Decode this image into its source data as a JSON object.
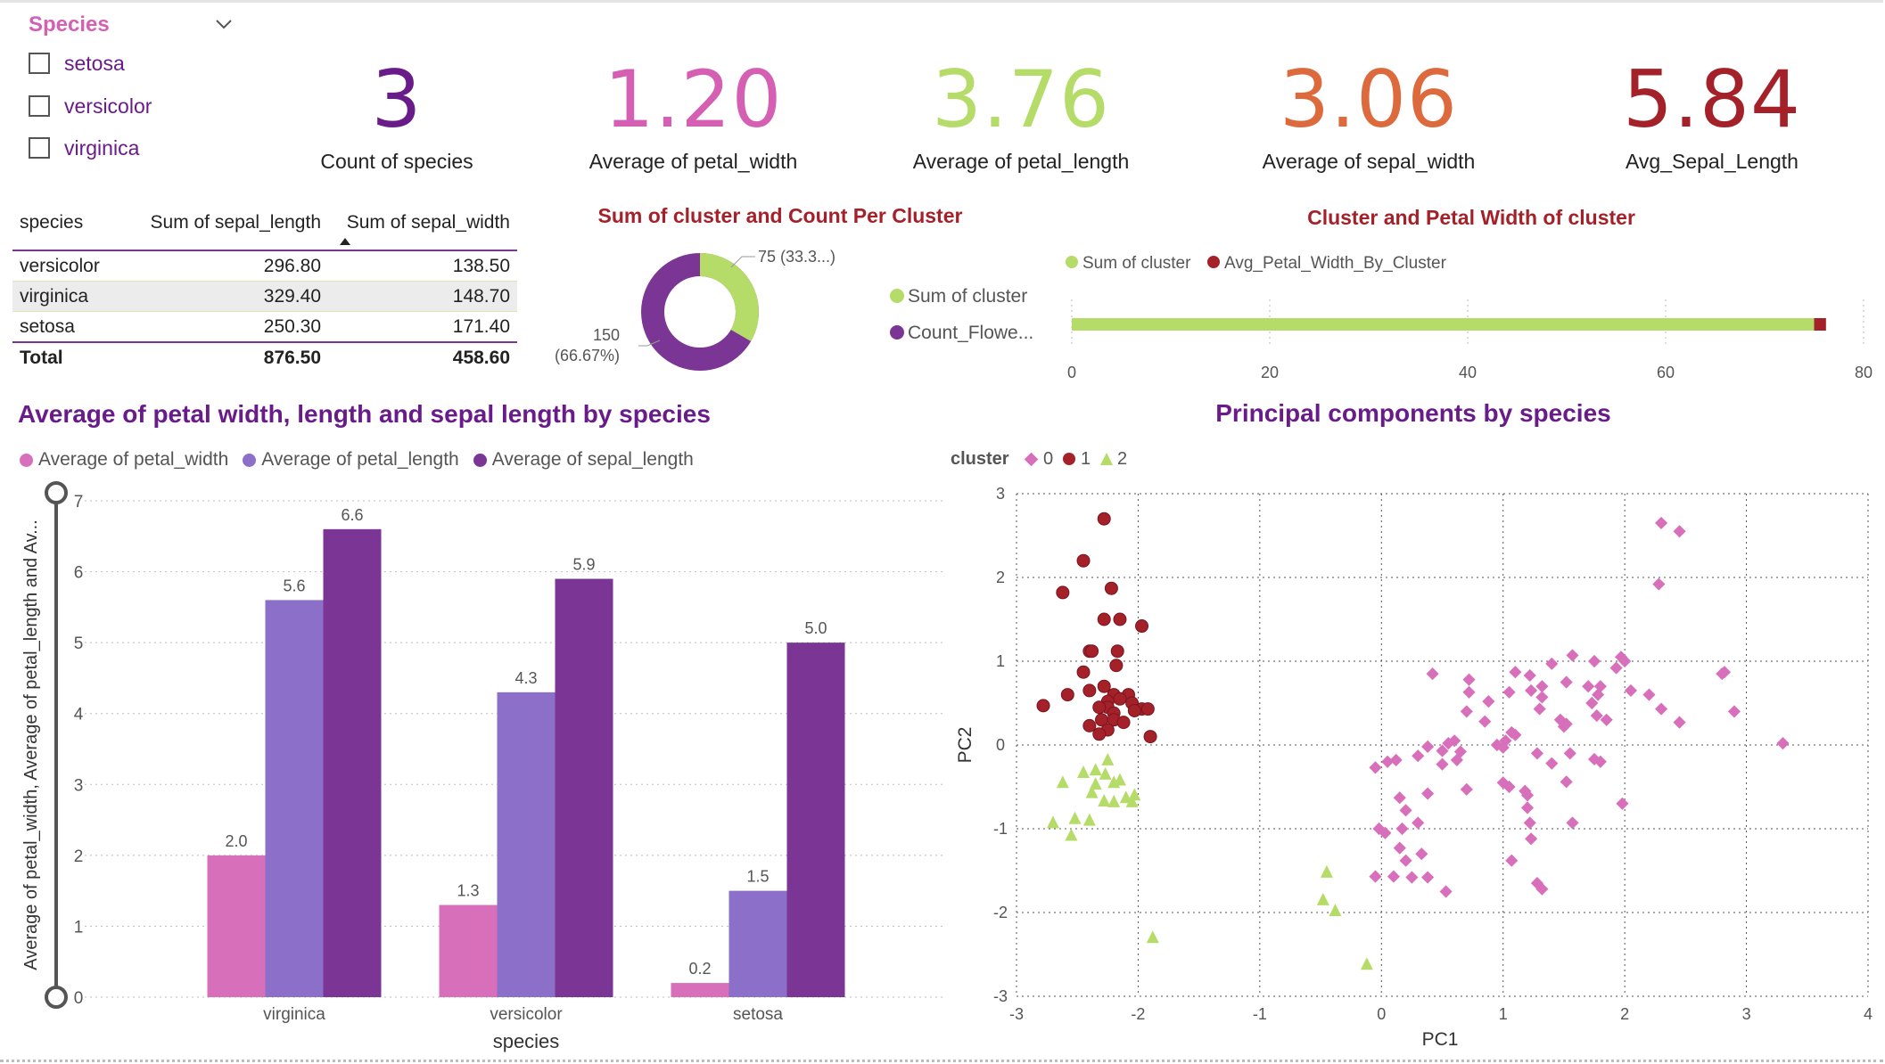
{
  "slicer": {
    "title": "Species",
    "items": [
      "setosa",
      "versicolor",
      "virginica"
    ]
  },
  "kpis": [
    {
      "value": "3",
      "label": "Count of species",
      "color": "#6a1b8a"
    },
    {
      "value": "1.20",
      "label": "Average of petal_width",
      "color": "#d45fb3"
    },
    {
      "value": "3.76",
      "label": "Average of petal_length",
      "color": "#b5dc68"
    },
    {
      "value": "3.06",
      "label": "Average of sepal_width",
      "color": "#dc6a3c"
    },
    {
      "value": "5.84",
      "label": "Avg_Sepal_Length",
      "color": "#a4212a"
    }
  ],
  "table": {
    "headers": [
      "species",
      "Sum of sepal_length",
      "Sum of sepal_width"
    ],
    "rows": [
      [
        "versicolor",
        "296.80",
        "138.50"
      ],
      [
        "virginica",
        "329.40",
        "148.70"
      ],
      [
        "setosa",
        "250.30",
        "171.40"
      ]
    ],
    "total": [
      "Total",
      "876.50",
      "458.60"
    ]
  },
  "donut": {
    "title": "Sum of cluster and Count Per Cluster",
    "label_small": "75 (33.3...)",
    "label_big_1": "150",
    "label_big_2": "(66.67%)",
    "legend": [
      "Sum of cluster",
      "Count_Flowe..."
    ],
    "colors": [
      "#b5dc68",
      "#7b3594"
    ]
  },
  "hbar": {
    "title": "Cluster and Petal Width of cluster",
    "legend": [
      "Sum of cluster",
      "Avg_Petal_Width_By_Cluster"
    ],
    "ticks": [
      "0",
      "20",
      "40",
      "60",
      "80"
    ],
    "colors": [
      "#b5dc68",
      "#a4212a"
    ]
  },
  "bar_title": "Average of petal width, length and sepal length by species",
  "scatter_title": "Principal components by species",
  "scatter_legend": {
    "title": "cluster",
    "items": [
      "0",
      "1",
      "2"
    ]
  },
  "chart_data": [
    {
      "type": "bar",
      "title": "Sum of cluster and Count Per Cluster",
      "note": "horizontal stacked bar",
      "categories": [
        ""
      ],
      "series": [
        {
          "name": "Sum of cluster",
          "values": [
            75
          ]
        },
        {
          "name": "Avg_Petal_Width_By_Cluster",
          "values": [
            1.2
          ]
        }
      ],
      "xlim": [
        0,
        80
      ]
    },
    {
      "type": "bar",
      "title": "Average of petal width, length and sepal length by species",
      "categories": [
        "virginica",
        "versicolor",
        "setosa"
      ],
      "series": [
        {
          "name": "Average of petal_width",
          "values": [
            2.0,
            1.3,
            0.2
          ],
          "color": "#d86fbb"
        },
        {
          "name": "Average of petal_length",
          "values": [
            5.6,
            4.3,
            1.5
          ],
          "color": "#8b6fc9"
        },
        {
          "name": "Average of sepal_length",
          "values": [
            6.6,
            5.9,
            5.0
          ],
          "color": "#7b3594"
        }
      ],
      "data_labels": [
        [
          "2.0",
          "5.6",
          "6.6"
        ],
        [
          "1.3",
          "4.3",
          "5.9"
        ],
        [
          "0.2",
          "1.5",
          "5.0"
        ]
      ],
      "xlabel": "species",
      "ylabel": "Average of petal_width, Average of petal_length and Av...",
      "ylim": [
        0,
        7
      ],
      "yticks": [
        "0",
        "1",
        "2",
        "3",
        "4",
        "5",
        "6",
        "7"
      ],
      "grid": true,
      "legend_position": "top-left"
    },
    {
      "type": "scatter",
      "title": "Principal components by species",
      "xlabel": "PC1",
      "ylabel": "PC2",
      "xlim": [
        -3,
        4
      ],
      "ylim": [
        -3,
        3
      ],
      "xticks": [
        "-3",
        "-2",
        "-1",
        "0",
        "1",
        "2",
        "3",
        "4"
      ],
      "yticks": [
        "3",
        "2",
        "1",
        "0",
        "-1",
        "-2",
        "-3"
      ],
      "grid": true,
      "legend_position": "top-left",
      "series": [
        {
          "name": "0",
          "marker": "diamond",
          "color": "#d86fbb",
          "points": [
            [
              2.3,
              2.65
            ],
            [
              2.45,
              2.55
            ],
            [
              2.28,
              1.92
            ],
            [
              0.42,
              0.85
            ],
            [
              1.1,
              0.87
            ],
            [
              1.57,
              1.07
            ],
            [
              1.75,
              1.0
            ],
            [
              1.97,
              1.05
            ],
            [
              2.0,
              1.0
            ],
            [
              1.93,
              0.92
            ],
            [
              1.4,
              0.97
            ],
            [
              1.22,
              0.83
            ],
            [
              0.72,
              0.78
            ],
            [
              1.23,
              0.65
            ],
            [
              1.32,
              0.7
            ],
            [
              1.52,
              0.75
            ],
            [
              1.7,
              0.7
            ],
            [
              1.8,
              0.7
            ],
            [
              1.78,
              0.6
            ],
            [
              2.05,
              0.65
            ],
            [
              2.2,
              0.6
            ],
            [
              2.82,
              0.87
            ],
            [
              2.8,
              0.85
            ],
            [
              0.72,
              0.63
            ],
            [
              0.88,
              0.52
            ],
            [
              1.05,
              0.63
            ],
            [
              1.32,
              0.57
            ],
            [
              1.73,
              0.5
            ],
            [
              1.77,
              0.35
            ],
            [
              1.85,
              0.3
            ],
            [
              0.7,
              0.4
            ],
            [
              0.85,
              0.28
            ],
            [
              1.3,
              0.43
            ],
            [
              1.47,
              0.3
            ],
            [
              1.5,
              0.22
            ],
            [
              1.52,
              0.25
            ],
            [
              2.3,
              0.43
            ],
            [
              2.45,
              0.27
            ],
            [
              2.9,
              0.4
            ],
            [
              3.3,
              0.02
            ],
            [
              0.6,
              0.05
            ],
            [
              1.07,
              0.15
            ],
            [
              1.02,
              0.05
            ],
            [
              1.1,
              0.12
            ],
            [
              0.95,
              0.0
            ],
            [
              1.0,
              -0.03
            ],
            [
              0.5,
              -0.07
            ],
            [
              0.38,
              -0.02
            ],
            [
              0.55,
              0.02
            ],
            [
              0.65,
              -0.08
            ],
            [
              0.3,
              -0.13
            ],
            [
              0.62,
              -0.18
            ],
            [
              0.5,
              -0.23
            ],
            [
              0.12,
              -0.18
            ],
            [
              0.05,
              -0.2
            ],
            [
              -0.05,
              -0.27
            ],
            [
              1.28,
              -0.1
            ],
            [
              1.4,
              -0.22
            ],
            [
              1.55,
              -0.1
            ],
            [
              1.75,
              -0.17
            ],
            [
              1.8,
              -0.2
            ],
            [
              1.52,
              -0.44
            ],
            [
              1.98,
              -0.7
            ],
            [
              1.0,
              -0.45
            ],
            [
              1.05,
              -0.5
            ],
            [
              1.18,
              -0.55
            ],
            [
              1.2,
              -0.6
            ],
            [
              1.2,
              -0.75
            ],
            [
              1.22,
              -0.93
            ],
            [
              0.7,
              -0.53
            ],
            [
              0.38,
              -0.58
            ],
            [
              0.15,
              -0.63
            ],
            [
              0.2,
              -0.78
            ],
            [
              0.3,
              -0.93
            ],
            [
              0.17,
              -1.0
            ],
            [
              1.57,
              -0.93
            ],
            [
              1.23,
              -1.12
            ],
            [
              0.15,
              -1.23
            ],
            [
              0.2,
              -1.38
            ],
            [
              0.33,
              -1.3
            ],
            [
              -0.02,
              -1.0
            ],
            [
              0.03,
              -1.05
            ],
            [
              0.38,
              -1.58
            ],
            [
              0.53,
              -1.75
            ],
            [
              -0.05,
              -1.57
            ],
            [
              0.1,
              -1.57
            ],
            [
              1.28,
              -1.65
            ],
            [
              1.32,
              -1.72
            ],
            [
              1.07,
              -1.38
            ],
            [
              0.25,
              -1.58
            ]
          ]
        },
        {
          "name": "1",
          "marker": "circle",
          "color": "#a4212a",
          "points": [
            [
              -2.28,
              2.7
            ],
            [
              -2.45,
              2.2
            ],
            [
              -2.22,
              1.87
            ],
            [
              -2.62,
              1.82
            ],
            [
              -2.15,
              1.5
            ],
            [
              -2.28,
              1.5
            ],
            [
              -1.97,
              1.42
            ],
            [
              -2.4,
              1.12
            ],
            [
              -2.38,
              1.12
            ],
            [
              -2.17,
              1.12
            ],
            [
              -2.45,
              0.87
            ],
            [
              -2.28,
              0.7
            ],
            [
              -2.18,
              0.95
            ],
            [
              -2.4,
              0.65
            ],
            [
              -2.58,
              0.6
            ],
            [
              -2.2,
              0.6
            ],
            [
              -2.08,
              0.6
            ],
            [
              -2.25,
              0.52
            ],
            [
              -2.15,
              0.55
            ],
            [
              -2.25,
              0.45
            ],
            [
              -2.32,
              0.45
            ],
            [
              -2.05,
              0.5
            ],
            [
              -1.97,
              0.43
            ],
            [
              -2.03,
              0.41
            ],
            [
              -1.92,
              0.43
            ],
            [
              -2.78,
              0.47
            ],
            [
              -2.2,
              0.38
            ],
            [
              -2.3,
              0.3
            ],
            [
              -2.2,
              0.3
            ],
            [
              -2.12,
              0.27
            ],
            [
              -2.25,
              0.18
            ],
            [
              -2.32,
              0.13
            ],
            [
              -2.4,
              0.23
            ],
            [
              -1.9,
              0.1
            ]
          ]
        },
        {
          "name": "2",
          "marker": "triangle",
          "color": "#b5dc68",
          "points": [
            [
              -2.25,
              -0.18
            ],
            [
              -2.35,
              -0.3
            ],
            [
              -2.45,
              -0.33
            ],
            [
              -2.27,
              -0.35
            ],
            [
              -2.62,
              -0.45
            ],
            [
              -2.35,
              -0.47
            ],
            [
              -2.2,
              -0.45
            ],
            [
              -2.15,
              -0.42
            ],
            [
              -2.03,
              -0.6
            ],
            [
              -2.1,
              -0.63
            ],
            [
              -2.28,
              -0.67
            ],
            [
              -2.2,
              -0.68
            ],
            [
              -2.38,
              -0.57
            ],
            [
              -2.52,
              -0.88
            ],
            [
              -2.7,
              -0.93
            ],
            [
              -2.4,
              -0.9
            ],
            [
              -2.55,
              -1.08
            ],
            [
              -1.88,
              -2.3
            ],
            [
              -0.45,
              -1.52
            ],
            [
              -0.48,
              -1.85
            ],
            [
              -0.38,
              -1.98
            ],
            [
              -0.12,
              -2.62
            ],
            [
              -2.05,
              -0.68
            ]
          ]
        }
      ]
    }
  ]
}
